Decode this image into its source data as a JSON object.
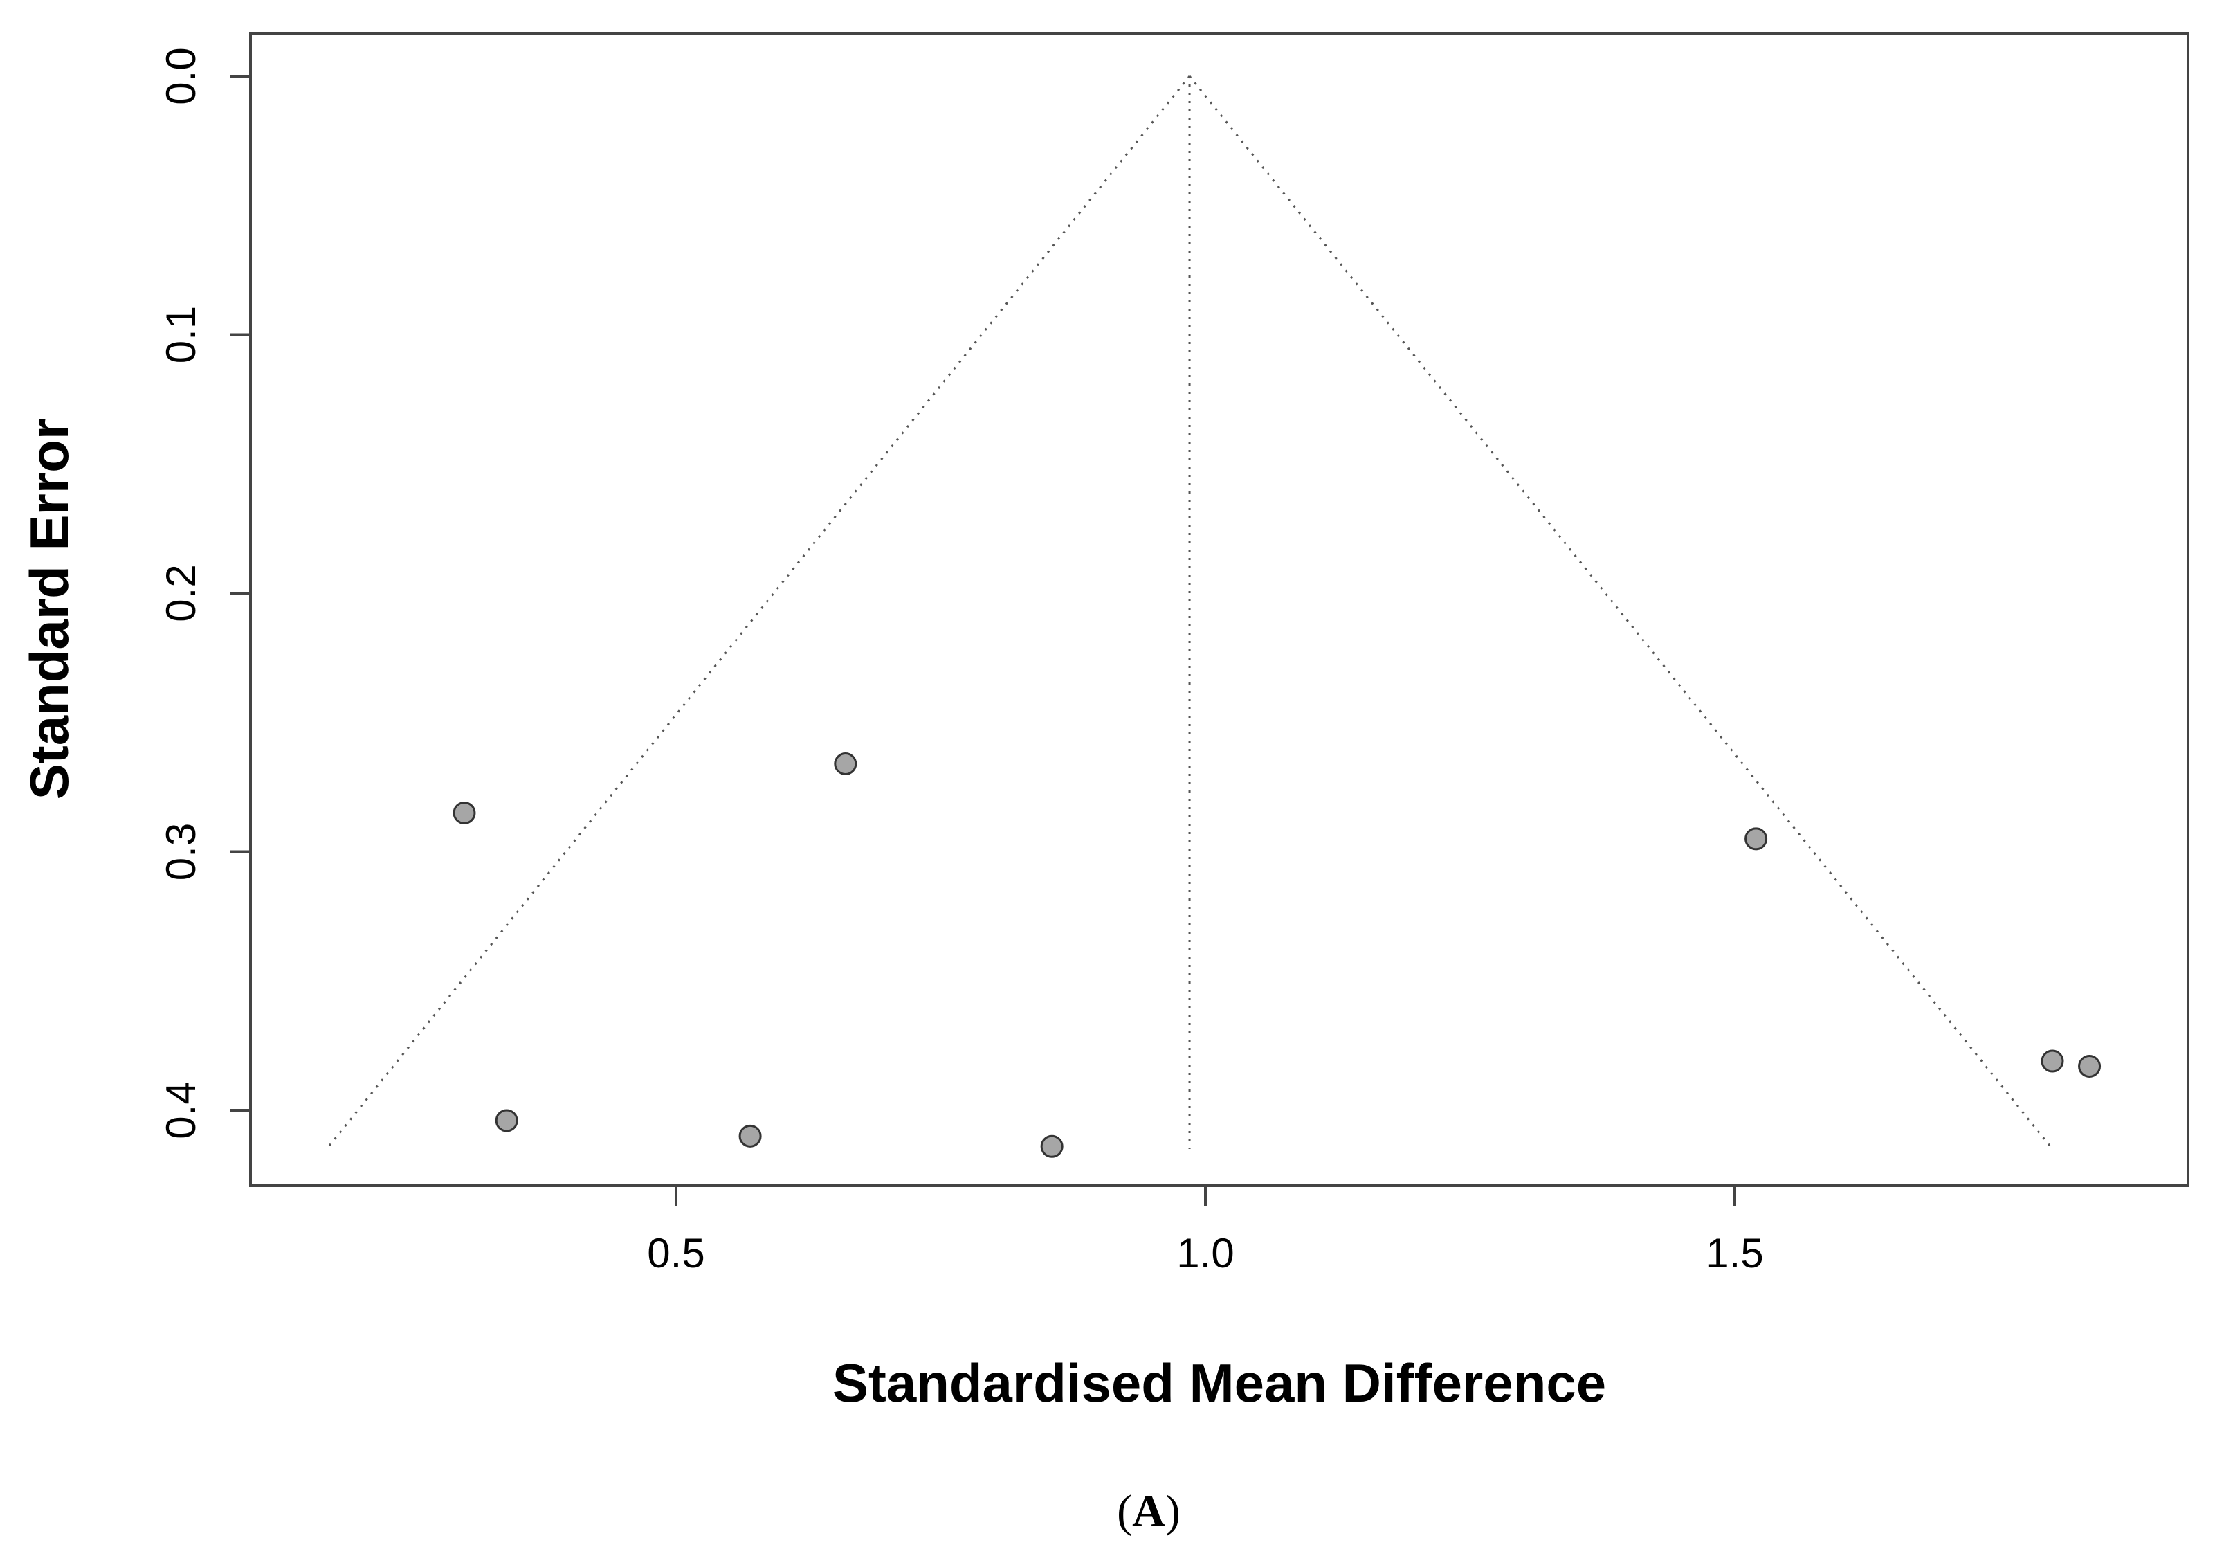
{
  "chart_data": {
    "type": "scatter",
    "subtype": "funnel",
    "title": "",
    "xlabel": "Standardised Mean Difference",
    "ylabel": "Standard Error",
    "panel_label_open": "(",
    "panel_label_letter": "A",
    "panel_label_close": ")",
    "xlim": [
      0.1,
      1.9
    ],
    "ylim": [
      0.0,
      0.43
    ],
    "y_reversed": true,
    "x_ticks": [
      0.5,
      1.0,
      1.5
    ],
    "x_tick_labels": [
      "0.5",
      "1.0",
      "1.5"
    ],
    "y_ticks": [
      0.0,
      0.1,
      0.2,
      0.3,
      0.4
    ],
    "y_tick_labels": [
      "0.0",
      "0.1",
      "0.2",
      "0.3",
      "0.4"
    ],
    "grid": false,
    "summary_estimate": 0.985,
    "funnel": {
      "apex": [
        0.985,
        0.0
      ],
      "left_bottom": [
        0.17,
        0.415
      ],
      "right_bottom": [
        1.8,
        0.415
      ],
      "center_bottom": [
        0.985,
        0.415
      ]
    },
    "points": [
      {
        "x": 0.3,
        "y": 0.285
      },
      {
        "x": 0.66,
        "y": 0.266
      },
      {
        "x": 1.52,
        "y": 0.295
      },
      {
        "x": 0.34,
        "y": 0.404
      },
      {
        "x": 0.57,
        "y": 0.41
      },
      {
        "x": 0.855,
        "y": 0.414
      },
      {
        "x": 1.8,
        "y": 0.381
      },
      {
        "x": 1.835,
        "y": 0.383
      }
    ],
    "point_fill": "#a6a6a6",
    "point_stroke": "#333333",
    "line_color": "#555555"
  }
}
